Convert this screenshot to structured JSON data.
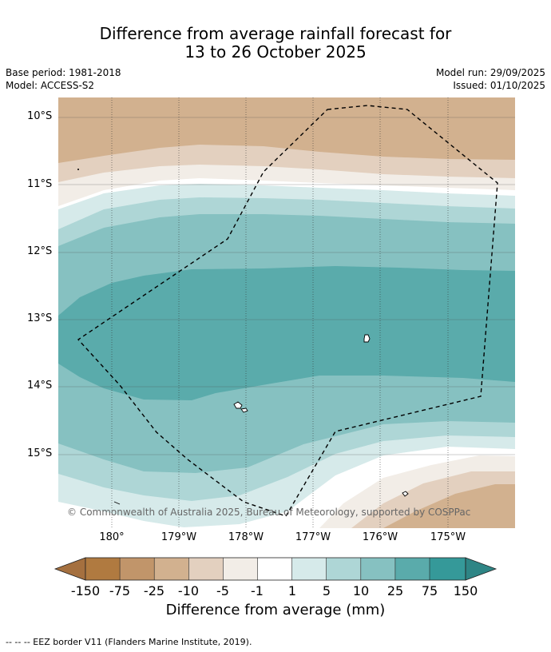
{
  "title": {
    "line1": "Difference from average rainfall forecast for",
    "line2": "13 to 26 October 2025"
  },
  "info": {
    "base_period": "Base period: 1981-2018",
    "model": "Model: ACCESS-S2",
    "model_run": "Model run: 29/09/2025",
    "issued": "Issued: 01/10/2025"
  },
  "axes": {
    "latitude_labels": [
      "10°S",
      "11°S",
      "12°S",
      "13°S",
      "14°S",
      "15°S"
    ],
    "longitude_labels": [
      "180°",
      "179°W",
      "178°W",
      "177°W",
      "176°W",
      "175°W"
    ]
  },
  "map": {
    "copyright": "© Commonwealth of Australia 2025, Bureau of Meteorology, supported by COSPPac",
    "eez_boundary": "dashed",
    "islands": [
      "island-north-east",
      "island-group-south-west",
      "island-south-east"
    ]
  },
  "legend": {
    "title": "Difference from average (mm)",
    "tick_labels": [
      "-150",
      "-75",
      "-25",
      "-10",
      "-5",
      "-1",
      "1",
      "5",
      "10",
      "25",
      "75",
      "150"
    ],
    "colors": [
      "#a5703f",
      "#b07a40",
      "#c1956a",
      "#d2b18f",
      "#e3d0bf",
      "#f2ede7",
      "#ffffff",
      "#d6eaea",
      "#aed6d6",
      "#86c1c1",
      "#5aabab",
      "#359999",
      "#2e8585"
    ]
  },
  "footnote": "--  --  -- EEZ border V11 (Flanders Marine Institute, 2019)."
}
